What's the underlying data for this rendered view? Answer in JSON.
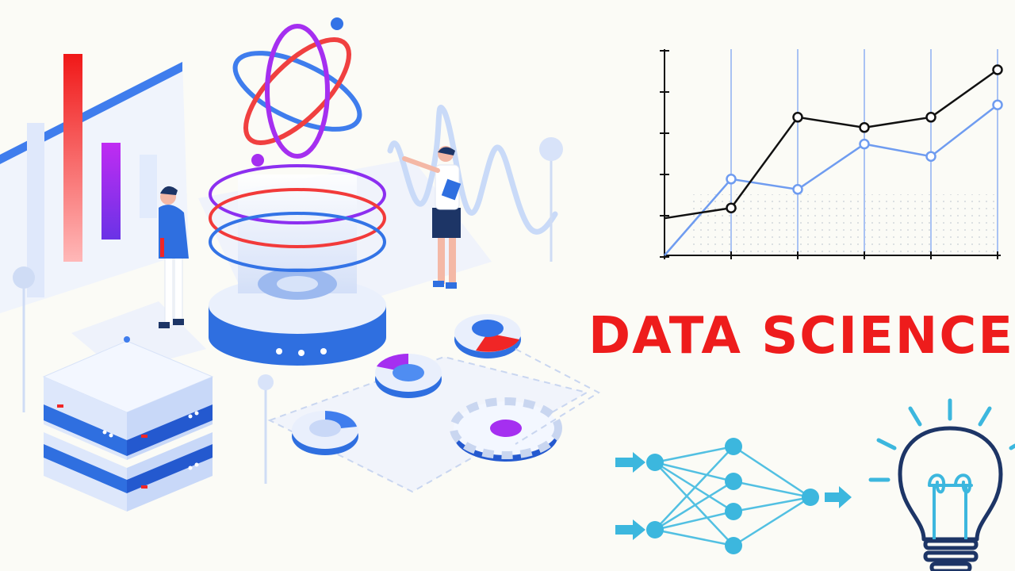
{
  "headline": "DATA SCIENCE",
  "colors": {
    "headline": "#ee1c1c",
    "accent_blue": "#2f6fe0",
    "pale_blue": "#d7e4fb",
    "purple": "#9b2ff0",
    "red": "#f02626",
    "network_cyan": "#3cb7de",
    "bulb_navy": "#1d3566",
    "chart_black": "#111111",
    "chart_blue": "#6f9cf0"
  },
  "illustrations": [
    "isometric-bar-chart",
    "atom-icon",
    "data-cylinder",
    "server-rack",
    "donut-chart-tiles",
    "gear-icon",
    "presenter-figure",
    "analyst-figure",
    "neural-network",
    "lightbulb-icon"
  ],
  "chart_data": {
    "type": "line",
    "title": "",
    "xlabel": "",
    "ylabel": "",
    "x": [
      0,
      1,
      2,
      3,
      4,
      5
    ],
    "xlim": [
      0,
      5
    ],
    "ylim": [
      0,
      100
    ],
    "grid": "vertical",
    "series": [
      {
        "values": [
          18,
          23,
          67,
          62,
          67,
          90
        ],
        "color": "#111111"
      },
      {
        "values": [
          0,
          37,
          32,
          54,
          48,
          73
        ],
        "color": "#6f9cf0"
      }
    ]
  }
}
